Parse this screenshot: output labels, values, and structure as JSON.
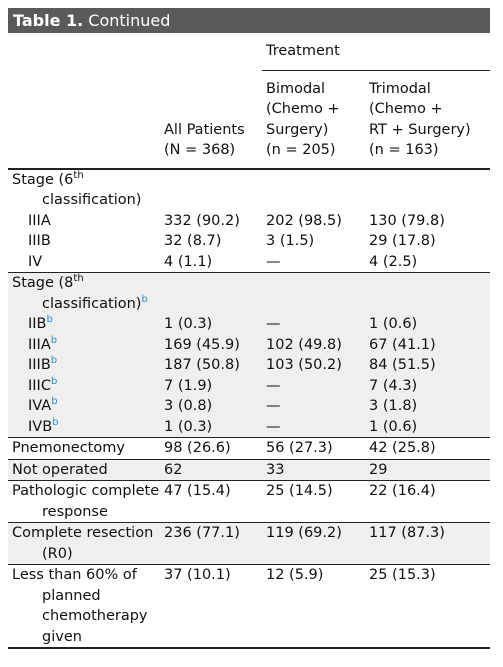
{
  "title": {
    "label": "Table 1.",
    "text": " Continued"
  },
  "header": {
    "group": "Treatment",
    "columns": [
      [
        "All Patients",
        "(N = 368)"
      ],
      [
        "Bimodal",
        "(Chemo +",
        "Surgery)",
        "(n = 205)"
      ],
      [
        "Trimodal",
        "(Chemo +",
        "RT + Surgery)",
        "(n = 163)"
      ]
    ]
  },
  "groups": [
    {
      "heading": {
        "label": "Stage (6",
        "sup": "th",
        "after": " classification)"
      },
      "rows": [
        {
          "label": "IIIA",
          "cells": [
            "332 (90.2)",
            "202 (98.5)",
            "130 (79.8)"
          ]
        },
        {
          "label": "IIIB",
          "cells": [
            "32 (8.7)",
            "3 (1.5)",
            "29 (17.8)"
          ]
        },
        {
          "label": "IV",
          "cells": [
            "4 (1.1)",
            "—",
            "4 (2.5)"
          ]
        }
      ]
    },
    {
      "heading": {
        "label": "Stage (8",
        "sup": "th",
        "after": " classification)",
        "note": "b"
      },
      "rows": [
        {
          "label": "IIB",
          "note": "b",
          "cells": [
            "1 (0.3)",
            "—",
            "1 (0.6)"
          ]
        },
        {
          "label": "IIIA",
          "note": "b",
          "cells": [
            "169 (45.9)",
            "102 (49.8)",
            "67 (41.1)"
          ]
        },
        {
          "label": "IIIB",
          "note": "b",
          "cells": [
            "187 (50.8)",
            "103 (50.2)",
            "84 (51.5)"
          ]
        },
        {
          "label": "IIIC",
          "note": "b",
          "cells": [
            "7 (1.9)",
            "—",
            "7 (4.3)"
          ]
        },
        {
          "label": "IVA",
          "note": "b",
          "cells": [
            "3 (0.8)",
            "—",
            "3 (1.8)"
          ]
        },
        {
          "label": "IVB",
          "note": "b",
          "cells": [
            "1 (0.3)",
            "—",
            "1 (0.6)"
          ]
        }
      ]
    },
    {
      "rows": [
        {
          "label": "Pnemonectomy",
          "cells": [
            "98 (26.6)",
            "56 (27.3)",
            "42 (25.8)"
          ]
        }
      ]
    },
    {
      "rows": [
        {
          "label": "Not operated",
          "cells": [
            "62",
            "33",
            "29"
          ]
        }
      ]
    },
    {
      "rows": [
        {
          "label": "Pathologic complete response",
          "cells": [
            "47 (15.4)",
            "25 (14.5)",
            "22 (16.4)"
          ]
        }
      ]
    },
    {
      "rows": [
        {
          "label": "Complete resection (R0)",
          "cells": [
            "236 (77.1)",
            "119 (69.2)",
            "117 (87.3)"
          ]
        }
      ]
    },
    {
      "rows": [
        {
          "label": "Less than 60% of planned chemotherapy given",
          "cells": [
            "37 (10.1)",
            "12 (5.9)",
            "25 (15.3)"
          ]
        }
      ]
    }
  ]
}
